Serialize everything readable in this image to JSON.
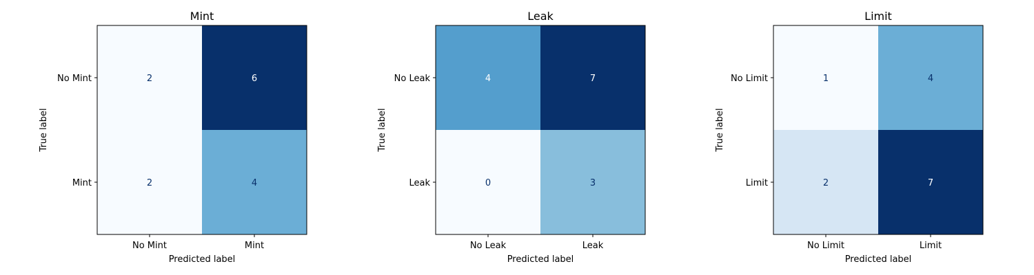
{
  "chart_data": [
    {
      "type": "heatmap",
      "title": "Mint",
      "xlabel": "Predicted label",
      "ylabel": "True label",
      "categories": [
        "No Mint",
        "Mint"
      ],
      "matrix": [
        [
          2,
          6
        ],
        [
          2,
          4
        ]
      ],
      "colormap": "Blues",
      "grid": false,
      "colorbar": false
    },
    {
      "type": "heatmap",
      "title": "Leak",
      "xlabel": "Predicted label",
      "ylabel": "True label",
      "categories": [
        "No Leak",
        "Leak"
      ],
      "matrix": [
        [
          4,
          7
        ],
        [
          0,
          3
        ]
      ],
      "colormap": "Blues",
      "grid": false,
      "colorbar": false
    },
    {
      "type": "heatmap",
      "title": "Limit",
      "xlabel": "Predicted label",
      "ylabel": "True label",
      "categories": [
        "No Limit",
        "Limit"
      ],
      "matrix": [
        [
          1,
          4
        ],
        [
          2,
          7
        ]
      ],
      "colormap": "Blues",
      "grid": false,
      "colorbar": false
    }
  ],
  "colors": {
    "low": "#f7fbff",
    "high": "#08306b",
    "text_dark": "#08306b",
    "text_light": "#ffffff"
  }
}
